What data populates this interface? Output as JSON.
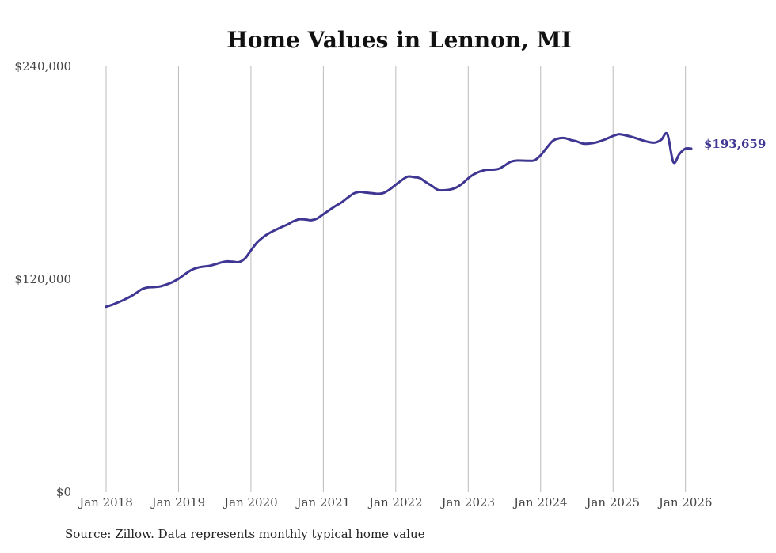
{
  "chart_data": {
    "type": "line",
    "title": "Home Values in Lennon, MI",
    "xlabel": "",
    "ylabel": "",
    "ylim": [
      0,
      240000
    ],
    "y_ticks": [
      {
        "value": 0,
        "label": "$0"
      },
      {
        "value": 120000,
        "label": "$120,000"
      },
      {
        "value": 240000,
        "label": "$240,000"
      }
    ],
    "x_ticks": [
      {
        "value": 2018,
        "label": "Jan 2018"
      },
      {
        "value": 2019,
        "label": "Jan 2019"
      },
      {
        "value": 2020,
        "label": "Jan 2020"
      },
      {
        "value": 2021,
        "label": "Jan 2021"
      },
      {
        "value": 2022,
        "label": "Jan 2022"
      },
      {
        "value": 2023,
        "label": "Jan 2023"
      },
      {
        "value": 2024,
        "label": "Jan 2024"
      },
      {
        "value": 2025,
        "label": "Jan 2025"
      },
      {
        "value": 2026,
        "label": "Jan 2026"
      }
    ],
    "xlim": [
      2018,
      2026.08
    ],
    "grid": "vertical",
    "series": [
      {
        "name": "Typical home value",
        "color": "#3e3692",
        "end_label": "$193,659",
        "x": [
          2018.0,
          2018.083,
          2018.167,
          2018.25,
          2018.333,
          2018.417,
          2018.5,
          2018.583,
          2018.667,
          2018.75,
          2018.833,
          2018.917,
          2019.0,
          2019.083,
          2019.167,
          2019.25,
          2019.333,
          2019.417,
          2019.5,
          2019.583,
          2019.667,
          2019.75,
          2019.833,
          2019.917,
          2020.0,
          2020.083,
          2020.167,
          2020.25,
          2020.333,
          2020.417,
          2020.5,
          2020.583,
          2020.667,
          2020.75,
          2020.833,
          2020.917,
          2021.0,
          2021.083,
          2021.167,
          2021.25,
          2021.333,
          2021.417,
          2021.5,
          2021.583,
          2021.667,
          2021.75,
          2021.833,
          2021.917,
          2022.0,
          2022.083,
          2022.167,
          2022.25,
          2022.333,
          2022.417,
          2022.5,
          2022.583,
          2022.667,
          2022.75,
          2022.833,
          2022.917,
          2023.0,
          2023.083,
          2023.167,
          2023.25,
          2023.333,
          2023.417,
          2023.5,
          2023.583,
          2023.667,
          2023.75,
          2023.833,
          2023.917,
          2024.0,
          2024.083,
          2024.167,
          2024.25,
          2024.333,
          2024.417,
          2024.5,
          2024.583,
          2024.667,
          2024.75,
          2024.833,
          2024.917,
          2025.0,
          2025.083,
          2025.167,
          2025.25,
          2025.333,
          2025.417,
          2025.5,
          2025.583,
          2025.667,
          2025.75,
          2025.833,
          2025.917,
          2026.0,
          2026.08
        ],
        "values": [
          104500,
          105600,
          107000,
          108500,
          110200,
          112300,
          114500,
          115400,
          115600,
          116000,
          117000,
          118400,
          120300,
          122700,
          125000,
          126400,
          127100,
          127500,
          128400,
          129400,
          130100,
          129900,
          129700,
          131700,
          136300,
          140700,
          143700,
          145900,
          147700,
          149300,
          150800,
          152600,
          153800,
          153700,
          153300,
          154300,
          156700,
          159000,
          161300,
          163300,
          165900,
          168300,
          169300,
          168900,
          168600,
          168200,
          168700,
          170700,
          173300,
          175900,
          177900,
          177600,
          177000,
          174700,
          172600,
          170400,
          170200,
          170600,
          171700,
          173900,
          176900,
          179300,
          180800,
          181700,
          181800,
          182200,
          184000,
          186200,
          186900,
          186900,
          186800,
          187100,
          189900,
          194100,
          198000,
          199400,
          199600,
          198500,
          197700,
          196500,
          196500,
          197000,
          198000,
          199300,
          200800,
          201800,
          201200,
          200400,
          199300,
          198200,
          197300,
          197100,
          198700,
          201800,
          186000,
          190700,
          193659,
          193659
        ]
      }
    ]
  },
  "source_note": "Source: Zillow. Data represents monthly typical home value"
}
